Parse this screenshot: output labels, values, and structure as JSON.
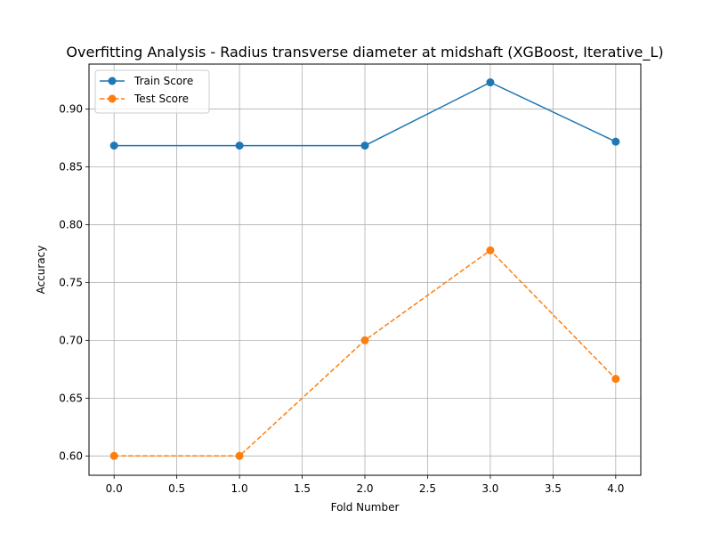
{
  "chart_data": {
    "type": "line",
    "title": "Overfitting Analysis - Radius transverse diameter at midshaft (XGBoost, Iterative_L)",
    "xlabel": "Fold Number",
    "ylabel": "Accuracy",
    "x": [
      0,
      1,
      2,
      3,
      4
    ],
    "xlim": [
      -0.2,
      4.2
    ],
    "ylim": [
      0.5833,
      0.9389
    ],
    "xticks": [
      "0.0",
      "0.5",
      "1.0",
      "1.5",
      "2.0",
      "2.5",
      "3.0",
      "3.5",
      "4.0"
    ],
    "xtick_values": [
      0,
      0.5,
      1,
      1.5,
      2,
      2.5,
      3,
      3.5,
      4
    ],
    "yticks": [
      "0.60",
      "0.65",
      "0.70",
      "0.75",
      "0.80",
      "0.85",
      "0.90"
    ],
    "ytick_values": [
      0.6,
      0.65,
      0.7,
      0.75,
      0.8,
      0.85,
      0.9
    ],
    "grid": true,
    "legend_position": "top-left",
    "series": [
      {
        "name": "Train Score",
        "values": [
          0.8684,
          0.8684,
          0.8684,
          0.9231,
          0.8718
        ],
        "color": "#1f77b4",
        "line_style": "solid",
        "marker": "circle"
      },
      {
        "name": "Test Score",
        "values": [
          0.6,
          0.6,
          0.7,
          0.7778,
          0.6667
        ],
        "color": "#ff7f0e",
        "line_style": "dashed",
        "marker": "circle"
      }
    ]
  }
}
